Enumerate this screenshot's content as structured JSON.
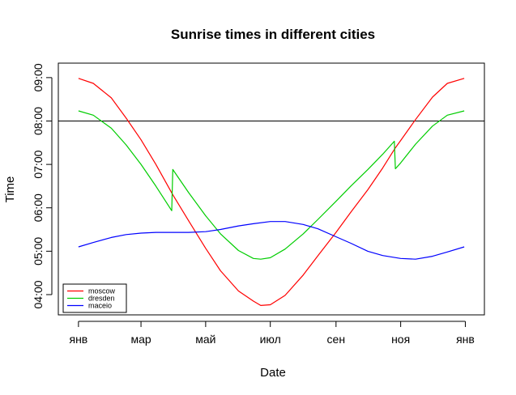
{
  "chart_data": {
    "type": "line",
    "title": "Sunrise times in different cities",
    "xlabel": "Date",
    "ylabel": "Time",
    "x_ticks": [
      "янв",
      "мар",
      "май",
      "июл",
      "сен",
      "ноя",
      "янв"
    ],
    "x_tick_dates": [
      "2013-01-01",
      "2013-03-01",
      "2013-05-01",
      "2013-07-01",
      "2013-09-01",
      "2013-11-01",
      "2014-01-01"
    ],
    "y_ticks": [
      "04:00",
      "05:00",
      "06:00",
      "07:00",
      "08:00",
      "09:00"
    ],
    "ylim": [
      "03:32",
      "09:20"
    ],
    "xlim": [
      "2012-12-13",
      "2014-01-19"
    ],
    "reference_line": {
      "time": "08:00",
      "color": "#000000"
    },
    "legend_position": "bottom-left",
    "series": [
      {
        "name": "moscow",
        "color": "#ff0000",
        "points": [
          [
            "2013-01-01",
            "08:59"
          ],
          [
            "2013-01-15",
            "08:52"
          ],
          [
            "2013-02-01",
            "08:32"
          ],
          [
            "2013-02-15",
            "08:04"
          ],
          [
            "2013-03-01",
            "07:34"
          ],
          [
            "2013-03-15",
            "07:00"
          ],
          [
            "2013-03-31",
            "06:18"
          ],
          [
            "2013-04-15",
            "05:42"
          ],
          [
            "2013-05-01",
            "05:04"
          ],
          [
            "2013-05-15",
            "04:33"
          ],
          [
            "2013-06-01",
            "04:05"
          ],
          [
            "2013-06-15",
            "03:51"
          ],
          [
            "2013-06-22",
            "03:45"
          ],
          [
            "2013-07-01",
            "03:46"
          ],
          [
            "2013-07-15",
            "03:59"
          ],
          [
            "2013-08-01",
            "04:27"
          ],
          [
            "2013-08-15",
            "04:54"
          ],
          [
            "2013-09-01",
            "05:26"
          ],
          [
            "2013-09-15",
            "05:54"
          ],
          [
            "2013-10-01",
            "06:25"
          ],
          [
            "2013-10-15",
            "06:55"
          ],
          [
            "2013-10-27",
            "07:23"
          ],
          [
            "2013-11-01",
            "07:33"
          ],
          [
            "2013-11-15",
            "08:02"
          ],
          [
            "2013-12-01",
            "08:33"
          ],
          [
            "2013-12-15",
            "08:52"
          ],
          [
            "2013-12-31",
            "08:59"
          ]
        ]
      },
      {
        "name": "dresden",
        "color": "#00cd00",
        "points": [
          [
            "2013-01-01",
            "08:14"
          ],
          [
            "2013-01-15",
            "08:08"
          ],
          [
            "2013-02-01",
            "07:50"
          ],
          [
            "2013-02-15",
            "07:27"
          ],
          [
            "2013-03-01",
            "07:00"
          ],
          [
            "2013-03-15",
            "06:30"
          ],
          [
            "2013-03-30",
            "05:56"
          ],
          [
            "2013-03-31",
            "06:53"
          ],
          [
            "2013-04-15",
            "06:21"
          ],
          [
            "2013-05-01",
            "05:49"
          ],
          [
            "2013-05-15",
            "05:24"
          ],
          [
            "2013-06-01",
            "05:01"
          ],
          [
            "2013-06-15",
            "04:50"
          ],
          [
            "2013-06-22",
            "04:49"
          ],
          [
            "2013-07-01",
            "04:51"
          ],
          [
            "2013-07-15",
            "05:03"
          ],
          [
            "2013-08-01",
            "05:24"
          ],
          [
            "2013-08-15",
            "05:44"
          ],
          [
            "2013-09-01",
            "06:09"
          ],
          [
            "2013-09-15",
            "06:30"
          ],
          [
            "2013-10-01",
            "06:53"
          ],
          [
            "2013-10-15",
            "07:14"
          ],
          [
            "2013-10-26",
            "07:32"
          ],
          [
            "2013-10-27",
            "06:54"
          ],
          [
            "2013-11-01",
            "07:02"
          ],
          [
            "2013-11-15",
            "07:28"
          ],
          [
            "2013-12-01",
            "07:53"
          ],
          [
            "2013-12-15",
            "08:08"
          ],
          [
            "2013-12-31",
            "08:14"
          ]
        ]
      },
      {
        "name": "maceio",
        "color": "#0000ff",
        "points": [
          [
            "2013-01-01",
            "05:06"
          ],
          [
            "2013-01-15",
            "05:12"
          ],
          [
            "2013-02-01",
            "05:19"
          ],
          [
            "2013-02-15",
            "05:23"
          ],
          [
            "2013-03-01",
            "05:25"
          ],
          [
            "2013-03-15",
            "05:26"
          ],
          [
            "2013-04-01",
            "05:26"
          ],
          [
            "2013-04-15",
            "05:26"
          ],
          [
            "2013-05-01",
            "05:27"
          ],
          [
            "2013-05-15",
            "05:30"
          ],
          [
            "2013-06-01",
            "05:35"
          ],
          [
            "2013-06-15",
            "05:38"
          ],
          [
            "2013-07-01",
            "05:41"
          ],
          [
            "2013-07-15",
            "05:41"
          ],
          [
            "2013-08-01",
            "05:37"
          ],
          [
            "2013-08-15",
            "05:31"
          ],
          [
            "2013-09-01",
            "05:20"
          ],
          [
            "2013-09-15",
            "05:11"
          ],
          [
            "2013-10-01",
            "05:00"
          ],
          [
            "2013-10-15",
            "04:54"
          ],
          [
            "2013-11-01",
            "04:50"
          ],
          [
            "2013-11-15",
            "04:49"
          ],
          [
            "2013-12-01",
            "04:53"
          ],
          [
            "2013-12-15",
            "04:59"
          ],
          [
            "2013-12-31",
            "05:06"
          ]
        ]
      }
    ]
  }
}
